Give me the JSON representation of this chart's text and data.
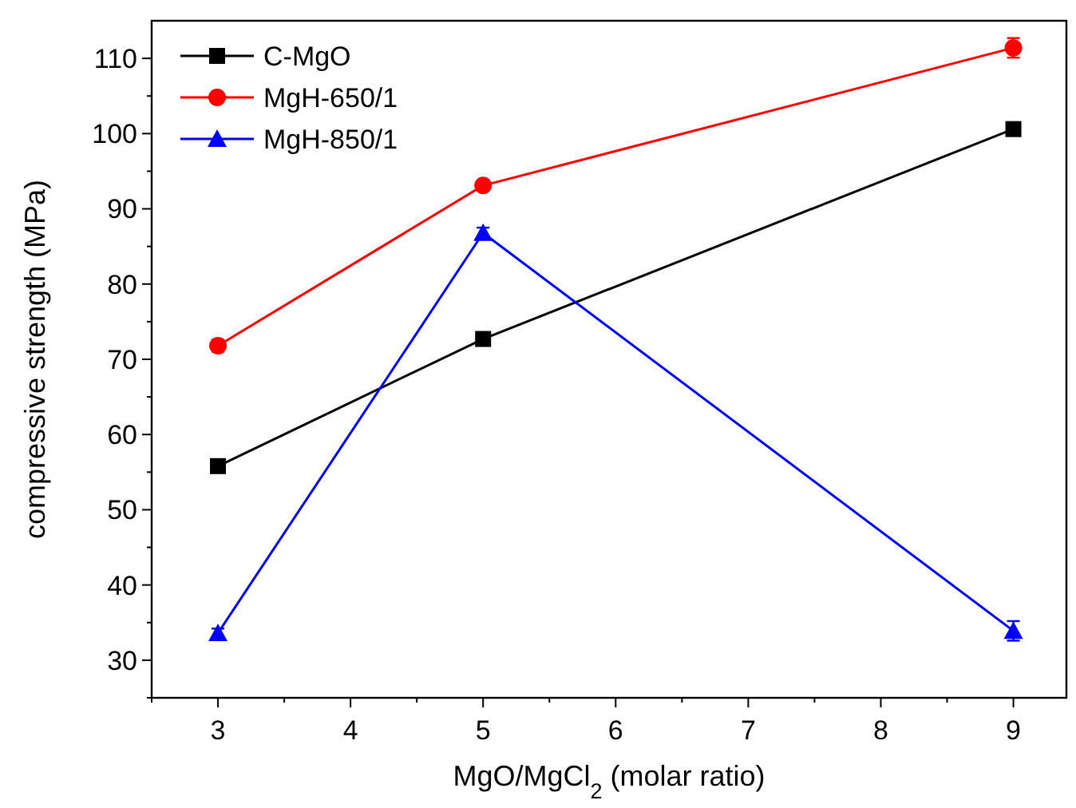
{
  "chart_data": {
    "type": "line",
    "xlabel": "MgO/MgCl$_{2}$ (molar ratio)",
    "ylabel": "compressive strength (MPa)",
    "x": [
      3,
      5,
      9
    ],
    "series": [
      {
        "name": "C-MgO",
        "color": "#000000",
        "marker": "square",
        "values": [
          55.8,
          72.7,
          100.6
        ],
        "errors": [
          0.5,
          0.6,
          0.8
        ]
      },
      {
        "name": "MgH-650/1",
        "color": "#ff0000",
        "marker": "circle",
        "values": [
          71.8,
          93.1,
          111.4
        ],
        "errors": [
          0.8,
          0.6,
          1.3
        ]
      },
      {
        "name": "MgH-850/1",
        "color": "#0000ff",
        "marker": "triangle",
        "values": [
          33.6,
          86.8,
          33.9
        ],
        "errors": [
          0.6,
          0.7,
          1.3
        ]
      }
    ],
    "xlim": [
      2.5,
      9.4
    ],
    "xticks": [
      {
        "value": 2.5,
        "label": null
      },
      3,
      {
        "value": 3.5,
        "label": null
      },
      4,
      {
        "value": 4.5,
        "label": null
      },
      5,
      {
        "value": 5.5,
        "label": null
      },
      6,
      {
        "value": 6.5,
        "label": null
      },
      7,
      {
        "value": 7.5,
        "label": null
      },
      8,
      {
        "value": 8.5,
        "label": null
      },
      9
    ],
    "ylim": [
      25,
      115
    ],
    "yticks": [
      {
        "value": 25,
        "label": null
      },
      30,
      {
        "value": 35,
        "label": null
      },
      40,
      {
        "value": 45,
        "label": null
      },
      50,
      {
        "value": 55,
        "label": null
      },
      60,
      {
        "value": 65,
        "label": null
      },
      70,
      {
        "value": 75,
        "label": null
      },
      80,
      {
        "value": 85,
        "label": null
      },
      90,
      {
        "value": 95,
        "label": null
      },
      100,
      {
        "value": 105,
        "label": null
      },
      110
    ],
    "grid": false,
    "legend": "top left",
    "line_style": "solid"
  }
}
